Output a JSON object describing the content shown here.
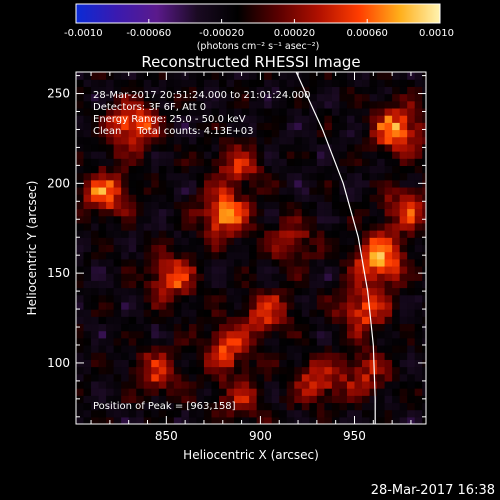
{
  "chart_data": {
    "type": "heatmap",
    "title": "Reconstructed RHESSI Image",
    "xlabel": "Heliocentric X (arcsec)",
    "ylabel": "Heliocentric Y (arcsec)",
    "xlim": [
      802,
      988
    ],
    "ylim": [
      66,
      262
    ],
    "xticks": [
      850,
      900,
      950
    ],
    "yticks": [
      100,
      150,
      200,
      250
    ],
    "colorbar": {
      "min": -0.001,
      "max": 0.001,
      "ticks": [
        "-0.0010",
        "-0.00060",
        "-0.00020",
        "0.00020",
        "0.00060",
        "0.0010"
      ],
      "label": "(photons cm⁻² s⁻¹ asec⁻²)",
      "colors": [
        "#0a2bd6",
        "#3a1ab0",
        "#5b1a8c",
        "#1a0a22",
        "#000000",
        "#5a0000",
        "#b01000",
        "#ff3d00",
        "#ffae1a",
        "#fff3b0"
      ]
    },
    "annotations": [
      "28-Mar-2017 20:51:24.000 to 21:01:24.000",
      "Detectors: 3F 6F, Att 0",
      "Energy Range: 25.0 - 50.0 keV",
      "Clean     Total counts: 4.13E+03"
    ],
    "peak_label": "Position of Peak = [963,158]",
    "peak": [
      963,
      158
    ],
    "limb_arc": [
      [
        919,
        262
      ],
      [
        933,
        230
      ],
      [
        944,
        200
      ],
      [
        952,
        170
      ],
      [
        957,
        140
      ],
      [
        960,
        110
      ],
      [
        961,
        80
      ],
      [
        961,
        66
      ]
    ],
    "hot_sources": [
      {
        "x": 832,
        "y": 232,
        "v": 0.00085
      },
      {
        "x": 818,
        "y": 195,
        "v": 0.00075
      },
      {
        "x": 853,
        "y": 148,
        "v": 0.0007
      },
      {
        "x": 881,
        "y": 183,
        "v": 0.00085
      },
      {
        "x": 888,
        "y": 210,
        "v": 0.0005
      },
      {
        "x": 903,
        "y": 128,
        "v": 0.0006
      },
      {
        "x": 882,
        "y": 108,
        "v": 0.00065
      },
      {
        "x": 917,
        "y": 168,
        "v": 0.00045
      },
      {
        "x": 963,
        "y": 158,
        "v": 0.001
      },
      {
        "x": 955,
        "y": 130,
        "v": 0.0007
      },
      {
        "x": 973,
        "y": 230,
        "v": 0.0009
      },
      {
        "x": 978,
        "y": 185,
        "v": 0.0006
      },
      {
        "x": 930,
        "y": 90,
        "v": 0.00055
      },
      {
        "x": 890,
        "y": 80,
        "v": 0.00045
      },
      {
        "x": 845,
        "y": 95,
        "v": 0.0005
      },
      {
        "x": 955,
        "y": 95,
        "v": 0.0005
      }
    ]
  },
  "footer": {
    "timestamp": "28-Mar-2017 16:38"
  }
}
